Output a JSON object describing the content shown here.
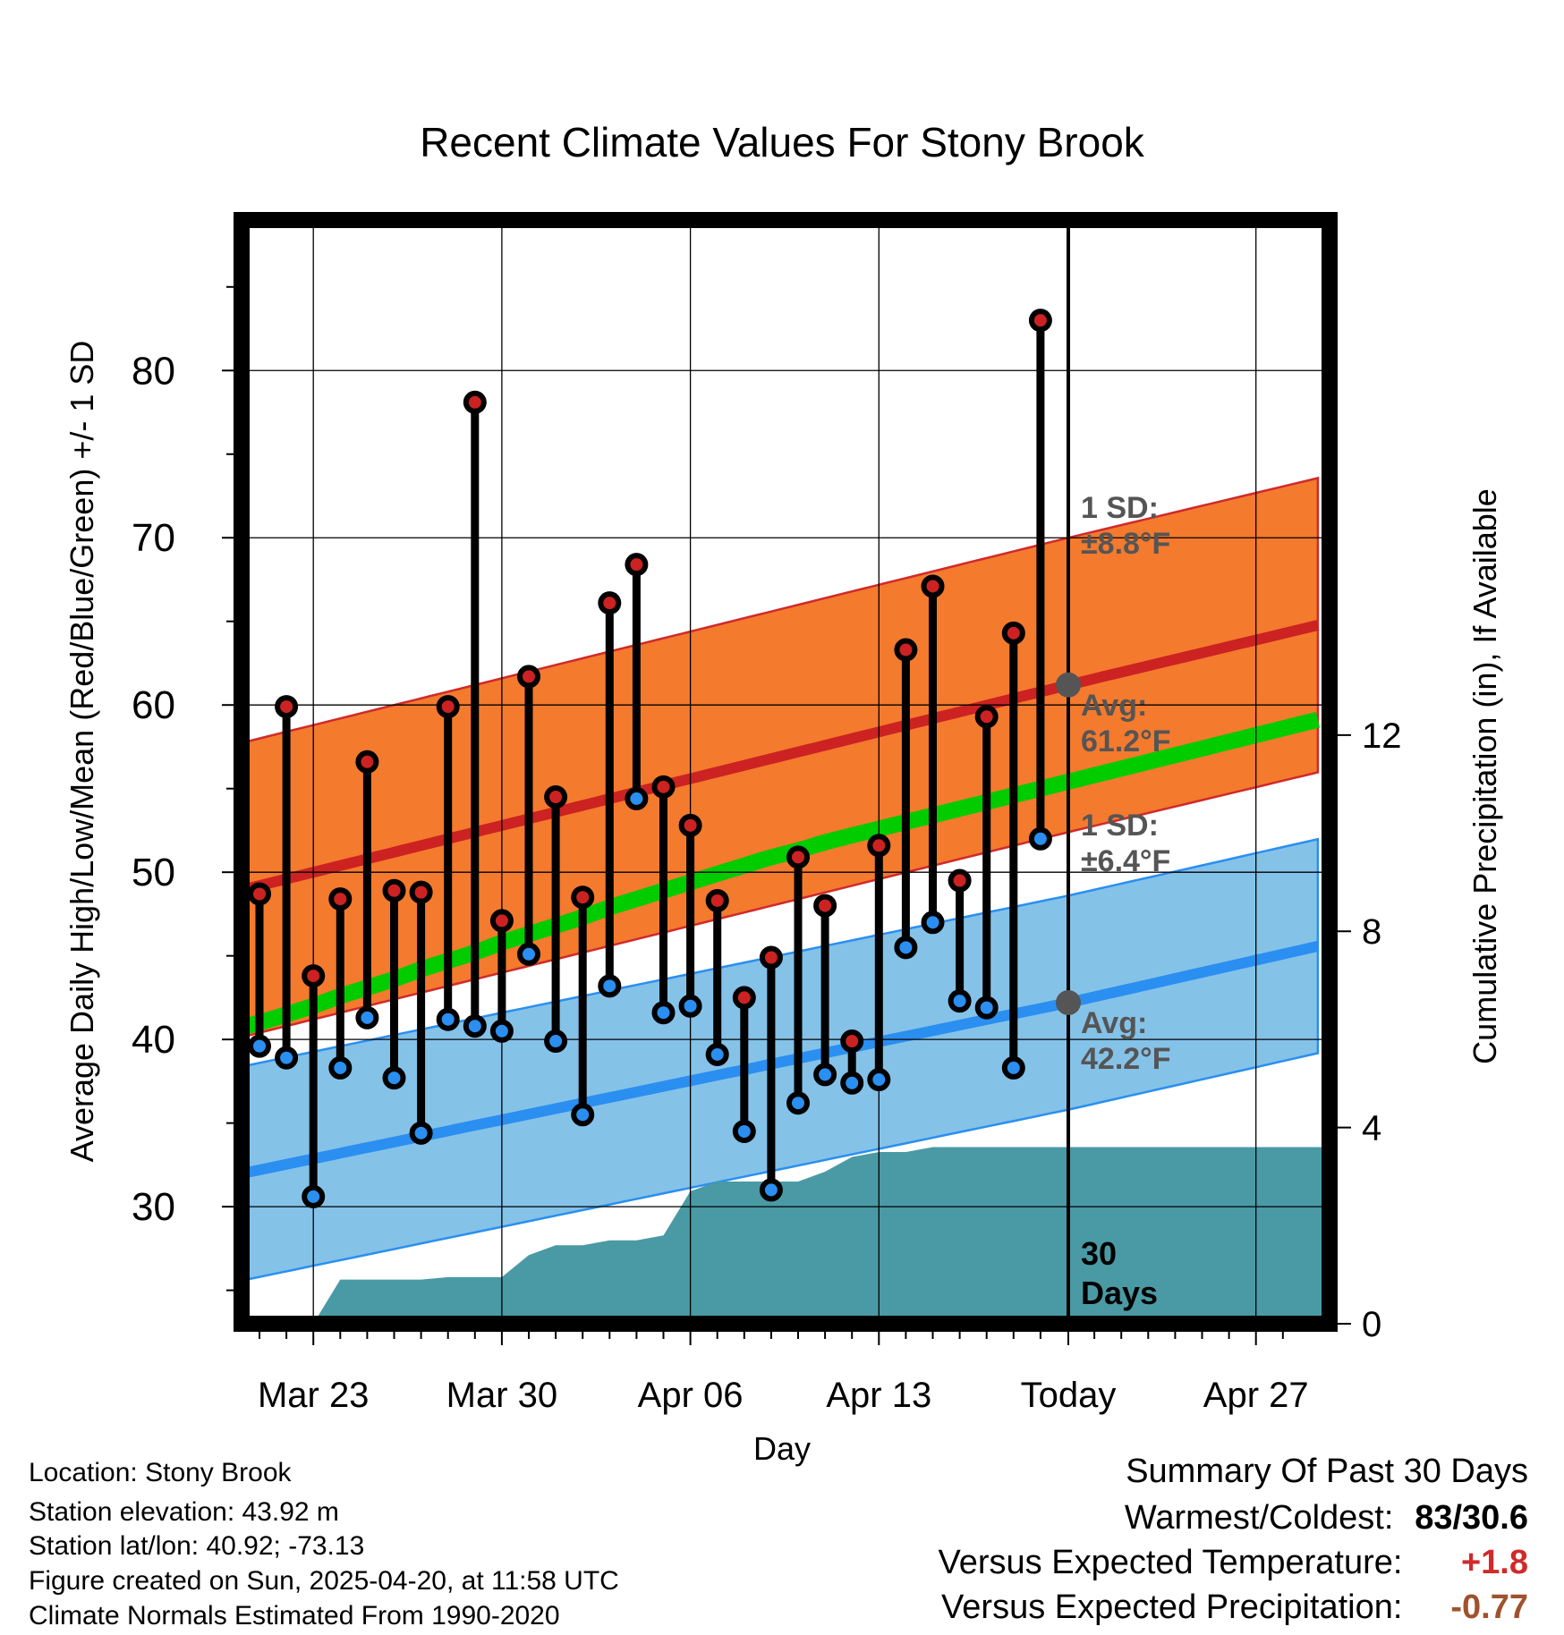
{
  "chart_data": {
    "type": "line",
    "title": "Recent Climate Values For Stony Brook",
    "xlabel": "Day",
    "ylabel": "Average Daily High/Low/Mean (Red/Blue/Green) +/- 1 SD",
    "y2label": "Cumulative Precipitation (in), If Available",
    "xticks": [
      "Mar 23",
      "Mar 30",
      "Apr 06",
      "Apr 13",
      "Today",
      "Apr 27"
    ],
    "yticks": [
      "30",
      "40",
      "50",
      "60",
      "70",
      "80"
    ],
    "y2ticks": [
      "0",
      "4",
      "8",
      "12"
    ],
    "ylim": [
      23,
      89
    ],
    "y2lim": [
      0,
      22.5
    ],
    "days": [
      "Mar 21",
      "Mar 22",
      "Mar 23",
      "Mar 24",
      "Mar 25",
      "Mar 26",
      "Mar 27",
      "Mar 28",
      "Mar 29",
      "Mar 30",
      "Mar 31",
      "Apr 01",
      "Apr 02",
      "Apr 03",
      "Apr 04",
      "Apr 05",
      "Apr 06",
      "Apr 07",
      "Apr 08",
      "Apr 09",
      "Apr 10",
      "Apr 11",
      "Apr 12",
      "Apr 13",
      "Apr 14",
      "Apr 15",
      "Apr 16",
      "Apr 17",
      "Apr 18",
      "Apr 19"
    ],
    "series": [
      {
        "name": "High",
        "color": "#cc2222",
        "values": [
          48.7,
          59.9,
          43.8,
          48.4,
          56.6,
          48.9,
          48.8,
          59.9,
          78.1,
          47.1,
          61.7,
          54.5,
          48.5,
          66.1,
          68.4,
          55.1,
          52.8,
          48.3,
          42.5,
          44.9,
          50.9,
          48.0,
          39.9,
          51.6,
          63.3,
          67.1,
          49.5,
          59.3,
          64.3,
          83.0
        ]
      },
      {
        "name": "Low",
        "color": "#2a8ff0",
        "values": [
          39.6,
          38.9,
          30.6,
          38.3,
          41.3,
          37.7,
          34.4,
          41.2,
          40.8,
          40.5,
          45.1,
          39.9,
          35.5,
          43.2,
          54.4,
          41.6,
          42.0,
          39.1,
          34.5,
          31.0,
          36.2,
          37.9,
          37.4,
          37.6,
          45.5,
          47.0,
          42.3,
          41.9,
          38.3,
          52.0
        ]
      },
      {
        "name": "Mean",
        "color": "#00cc00",
        "values": [
          41.0,
          41.5,
          42.0,
          42.6,
          43.1,
          43.6,
          44.2,
          44.7,
          45.2,
          45.8,
          46.3,
          46.8,
          47.3,
          47.9,
          48.4,
          48.9,
          49.4,
          49.9,
          50.4,
          50.9,
          51.3,
          51.8,
          52.2,
          52.6,
          53.0,
          53.4,
          53.8,
          54.2,
          54.6,
          55.0
        ]
      }
    ],
    "normal_high": {
      "day0": 49.2,
      "day_today": 61.2,
      "day_end": 64.9,
      "sd": 8.8
    },
    "normal_low": {
      "day0": 32.2,
      "day_today": 42.2,
      "day_end": 45.7,
      "sd": 6.4
    },
    "precip_cumulative": [
      0,
      0,
      0,
      0.9,
      0.9,
      0.9,
      0.9,
      0.95,
      0.95,
      0.95,
      1.4,
      1.6,
      1.6,
      1.7,
      1.7,
      1.8,
      2.7,
      2.9,
      2.9,
      2.9,
      2.9,
      3.1,
      3.4,
      3.5,
      3.5,
      3.6,
      3.6,
      3.6,
      3.6,
      3.6
    ],
    "precip_total_to_end": 3.6,
    "annotations": {
      "high_sd": [
        "1 SD:",
        "±8.8°F"
      ],
      "high_avg": [
        "Avg:",
        "61.2°F"
      ],
      "low_sd": [
        "1 SD:",
        "±6.4°F"
      ],
      "low_avg": [
        "Avg:",
        "42.2°F"
      ],
      "days": [
        "30",
        "Days"
      ]
    },
    "grid": true,
    "colors": {
      "high_band": "#f47a2e",
      "low_band": "#85c2e8",
      "precip": "#4a9aa5",
      "high_line": "#cc2222",
      "low_line": "#2a8ff0",
      "mean_line": "#00cc00"
    }
  },
  "info": {
    "location": "Location: Stony Brook",
    "elevation": "Station elevation: 43.92 m",
    "latlon": "Station lat/lon: 40.92; -73.13",
    "created": "Figure created on Sun, 2025-04-20, at 11:58 UTC",
    "normals": "Climate Normals Estimated From 1990-2020"
  },
  "summary": {
    "heading": "Summary Of Past 30 Days",
    "warm_label": "Warmest/Coldest:",
    "warm_value": "83/30.6",
    "temp_label": "Versus Expected Temperature:",
    "temp_value": "+1.8",
    "temp_color": "#d02a2a",
    "precip_label": "Versus Expected Precipitation:",
    "precip_value": "-0.77",
    "precip_color": "#a0522d"
  }
}
